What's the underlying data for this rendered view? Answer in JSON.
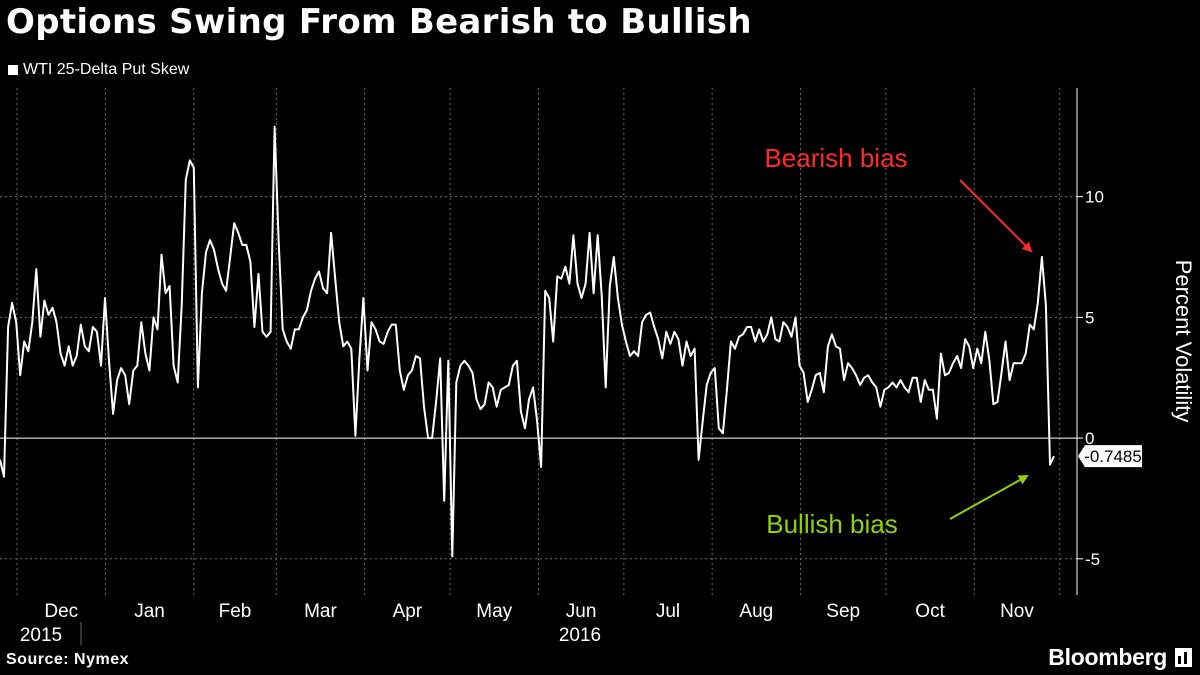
{
  "header": {
    "title": "Options Swing From Bearish to Bullish"
  },
  "footer": {
    "source": "Source: Nymex",
    "brand": "Bloomberg",
    "brand_icon": "bloomberg-terminal-icon"
  },
  "colors": {
    "background": "#000000",
    "line": "#ffffff",
    "bearish": "#ff2a2a",
    "bullish": "#8ed400",
    "grid": "#6a6a6a"
  },
  "chart_data": {
    "type": "line",
    "title": "Options Swing From Bearish to Bullish",
    "ylabel": "Percent Volatility",
    "ylim": [
      -6.5,
      14.5
    ],
    "yticks": [
      -5,
      0,
      5,
      10
    ],
    "ytick_labels": [
      "-5",
      "0",
      "5",
      "10"
    ],
    "grid": true,
    "months": [
      "Dec",
      "Jan",
      "Feb",
      "Mar",
      "Apr",
      "May",
      "Jun",
      "Jul",
      "Aug",
      "Sep",
      "Oct",
      "Nov"
    ],
    "years": [
      "2015",
      "2016"
    ],
    "legend": {
      "placement": "top-left",
      "entries": [
        "WTI 25-Delta Put Skew"
      ]
    },
    "last_value_label": "-0.7485",
    "annotations": [
      {
        "text": "Bearish bias",
        "color": "#ff2a2a"
      },
      {
        "text": "Bullish bias",
        "color": "#8ed400"
      }
    ],
    "series": [
      {
        "name": "WTI 25-Delta Put Skew",
        "x_start": "2015-11-25",
        "x_end": "2016-11-29",
        "values": [
          -0.9,
          -1.6,
          4.6,
          5.6,
          4.8,
          2.6,
          4.0,
          3.6,
          4.8,
          7.0,
          4.2,
          5.7,
          5.1,
          5.4,
          4.8,
          3.5,
          3.0,
          3.8,
          3.0,
          3.4,
          4.7,
          3.8,
          3.6,
          4.6,
          4.4,
          3.0,
          5.8,
          3.2,
          1.0,
          2.4,
          2.9,
          2.6,
          1.4,
          2.8,
          3.0,
          4.8,
          3.5,
          2.8,
          5.0,
          4.5,
          7.6,
          6.0,
          6.3,
          3.0,
          2.3,
          5.5,
          10.7,
          11.5,
          11.2,
          2.1,
          6.0,
          7.7,
          8.2,
          7.8,
          7.0,
          6.4,
          6.1,
          7.5,
          8.9,
          8.5,
          8.0,
          8.0,
          7.3,
          4.6,
          6.8,
          4.4,
          4.2,
          4.4,
          12.9,
          8.2,
          4.5,
          4.0,
          3.7,
          4.5,
          4.5,
          5.0,
          5.3,
          6.1,
          6.6,
          6.9,
          6.2,
          6.0,
          8.5,
          6.6,
          4.8,
          3.8,
          4.0,
          3.7,
          0.1,
          3.3,
          5.8,
          2.8,
          4.8,
          4.5,
          4.0,
          3.9,
          4.4,
          4.7,
          4.7,
          2.8,
          2.0,
          2.6,
          2.8,
          3.4,
          3.3,
          1.3,
          0.0,
          0.0,
          1.5,
          3.3,
          -2.6,
          3.2,
          -4.9,
          2.3,
          3.0,
          3.2,
          3.0,
          2.7,
          1.6,
          1.2,
          1.4,
          2.3,
          2.1,
          1.3,
          2.0,
          2.1,
          2.2,
          3.0,
          3.2,
          1.1,
          0.4,
          1.6,
          2.1,
          0.7,
          -1.2,
          6.1,
          5.8,
          4.0,
          6.7,
          6.6,
          7.1,
          6.4,
          8.4,
          6.4,
          5.8,
          6.4,
          8.5,
          6.0,
          8.4,
          5.9,
          2.1,
          6.3,
          7.5,
          5.8,
          4.7,
          4.0,
          3.4,
          3.6,
          3.4,
          4.8,
          5.1,
          5.2,
          4.6,
          4.1,
          3.3,
          4.4,
          3.9,
          4.4,
          4.1,
          3.0,
          4.0,
          3.4,
          3.7,
          -0.9,
          0.7,
          2.2,
          2.7,
          2.9,
          0.4,
          0.2,
          2.0,
          4.0,
          3.7,
          4.2,
          4.3,
          4.6,
          4.6,
          4.0,
          4.5,
          4.0,
          4.3,
          5.0,
          4.1,
          4.0,
          4.8,
          4.6,
          4.2,
          5.0,
          3.0,
          2.7,
          1.5,
          2.0,
          2.6,
          2.7,
          1.9,
          3.8,
          4.3,
          3.8,
          3.7,
          2.4,
          3.1,
          2.9,
          2.6,
          2.2,
          2.5,
          2.6,
          2.3,
          2.1,
          1.3,
          2.0,
          2.1,
          2.3,
          2.1,
          2.4,
          2.1,
          1.9,
          2.5,
          2.5,
          1.5,
          2.4,
          2.0,
          2.0,
          0.8,
          3.5,
          2.6,
          2.7,
          3.1,
          3.4,
          2.9,
          4.1,
          3.8,
          2.9,
          3.7,
          3.1,
          4.4,
          3.2,
          1.4,
          1.5,
          2.7,
          4.0,
          2.4,
          3.1,
          3.1,
          3.1,
          3.5,
          4.7,
          4.5,
          5.6,
          7.5,
          5.5,
          -1.1,
          -0.7485
        ]
      }
    ]
  }
}
